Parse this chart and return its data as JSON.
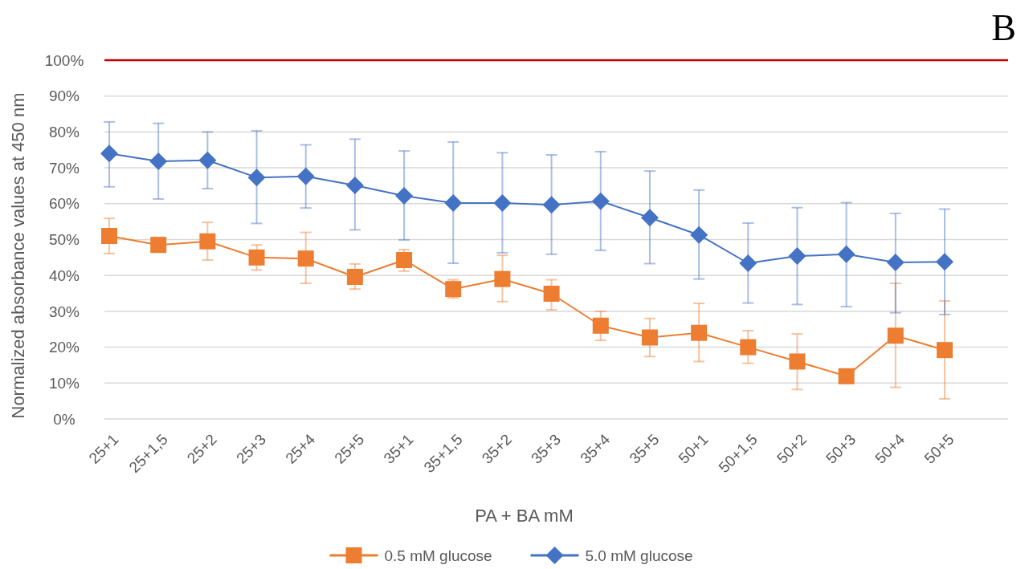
{
  "chart_data": {
    "type": "line",
    "xlabel": "PA + BA mM",
    "ylabel": "Normalized absorbance values at 450 nm",
    "annotations": [
      "B"
    ],
    "categories": [
      "25+1",
      "25+1,5",
      "25+2",
      "25+3",
      "25+4",
      "25+5",
      "35+1",
      "35+1,5",
      "35+2",
      "35+3",
      "35+4",
      "35+5",
      "50+1",
      "50+1,5",
      "50+2",
      "50+3",
      "50+4",
      "50+5"
    ],
    "series": [
      {
        "name": "0.5 mM glucose",
        "color": "#ed7d31",
        "marker": "square",
        "values": [
          51.0,
          48.5,
          49.5,
          45.0,
          44.7,
          39.6,
          44.3,
          36.2,
          39.0,
          34.9,
          26.0,
          22.7,
          24.0,
          20.0,
          16.0,
          11.9,
          23.2,
          19.2
        ],
        "errors": [
          [
            46.1,
            55.9
          ],
          [
            46.6,
            50.6
          ],
          [
            44.3,
            54.8
          ],
          [
            41.5,
            48.5
          ],
          [
            37.8,
            52.0
          ],
          [
            36.2,
            43.2
          ],
          [
            41.2,
            47.2
          ],
          [
            33.7,
            38.8
          ],
          [
            32.7,
            45.6
          ],
          [
            30.4,
            38.8
          ],
          [
            21.9,
            30.0
          ],
          [
            17.4,
            28.0
          ],
          [
            16.0,
            32.2
          ],
          [
            15.5,
            24.6
          ],
          [
            8.2,
            23.7
          ],
          null,
          [
            8.8,
            37.8
          ],
          [
            5.6,
            32.9
          ]
        ]
      },
      {
        "name": "5.0 mM glucose",
        "color": "#4472c4",
        "marker": "diamond",
        "values": [
          74.0,
          71.8,
          72.1,
          67.3,
          67.6,
          65.1,
          62.2,
          60.2,
          60.2,
          59.7,
          60.7,
          56.1,
          51.3,
          43.4,
          45.4,
          45.9,
          43.6,
          43.8
        ],
        "errors": [
          [
            64.7,
            82.8
          ],
          [
            61.3,
            82.4
          ],
          [
            64.2,
            80.0
          ],
          [
            54.5,
            80.3
          ],
          [
            58.8,
            76.4
          ],
          [
            52.7,
            78.0
          ],
          [
            49.9,
            74.7
          ],
          [
            43.4,
            77.2
          ],
          [
            46.3,
            74.2
          ],
          [
            45.9,
            73.6
          ],
          [
            47.0,
            74.5
          ],
          [
            43.3,
            69.1
          ],
          [
            39.0,
            63.8
          ],
          [
            32.3,
            54.6
          ],
          [
            31.9,
            58.9
          ],
          [
            31.3,
            60.3
          ],
          [
            29.6,
            57.3
          ],
          [
            29.1,
            58.5
          ]
        ]
      }
    ],
    "ylim": [
      0,
      100
    ],
    "yticks": [
      {
        "value": 0,
        "label": "0%"
      },
      {
        "value": 10,
        "label": "10%"
      },
      {
        "value": 20,
        "label": "20%"
      },
      {
        "value": 30,
        "label": "30%"
      },
      {
        "value": 40,
        "label": "40%"
      },
      {
        "value": 50,
        "label": "50%"
      },
      {
        "value": 60,
        "label": "60%"
      },
      {
        "value": 70,
        "label": "70%"
      },
      {
        "value": 80,
        "label": "80%"
      },
      {
        "value": 90,
        "label": "90%"
      },
      {
        "value": 100,
        "label": "100%"
      }
    ],
    "ref_lines": [
      {
        "axis": "y",
        "value": 100,
        "label": null,
        "color": "#c00000"
      }
    ],
    "grid": "y",
    "legend": "bottom",
    "line_style": "solid"
  }
}
